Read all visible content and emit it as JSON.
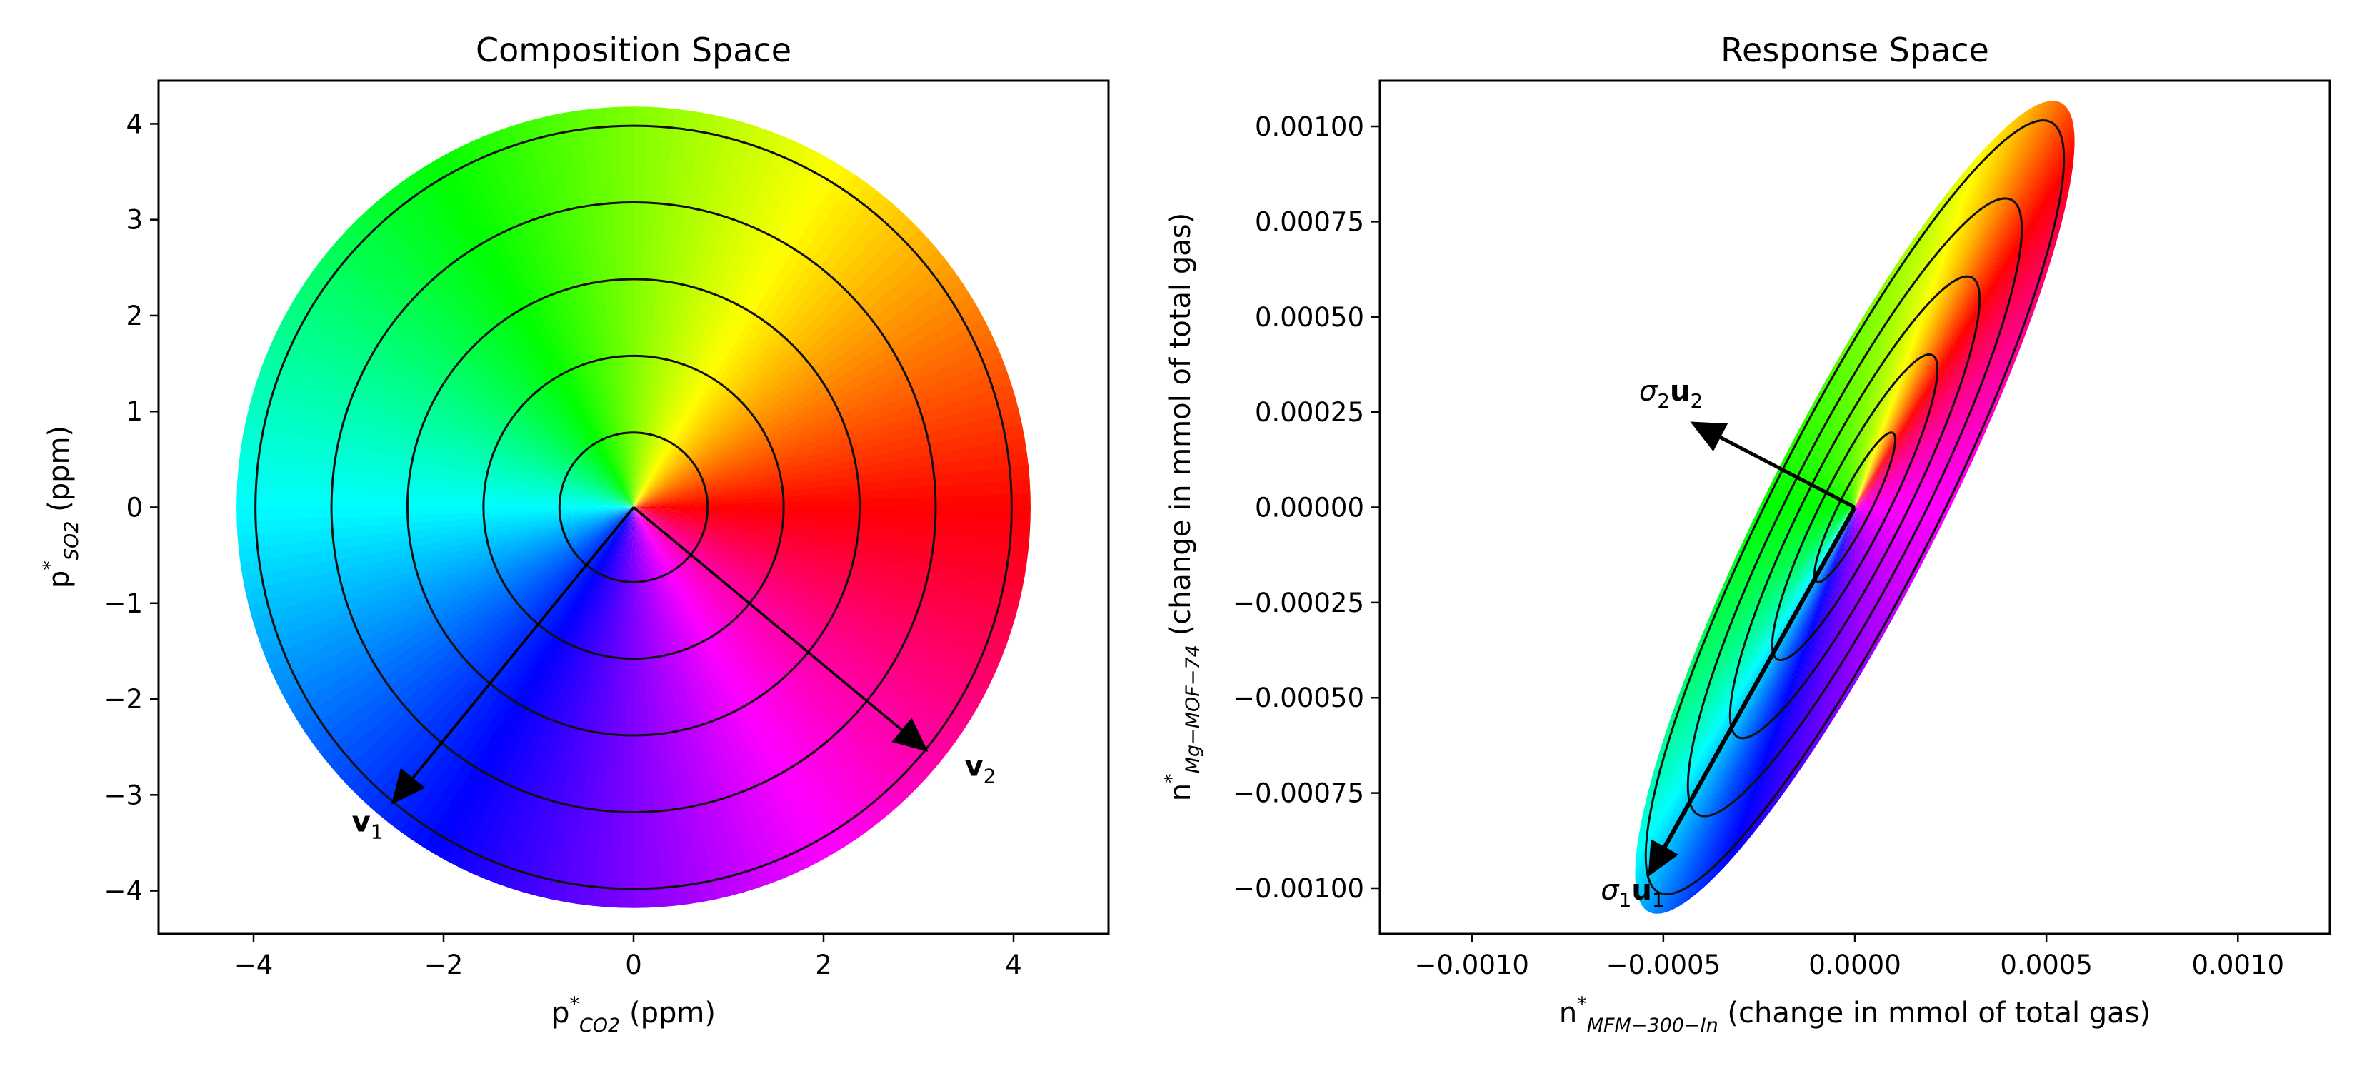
{
  "chart_data": [
    {
      "type": "polar color map with contours",
      "title": "Composition Space",
      "xlabel": "p*_CO2 (ppm)",
      "xlabel_parts": {
        "main": "p",
        "sup": "*",
        "sub": "CO2",
        "rest": " (ppm)"
      },
      "ylabel": "p*_SO2 (ppm)",
      "ylabel_parts": {
        "main": "p",
        "sup": "*",
        "sub": "SO2",
        "rest": " (ppm)"
      },
      "xlim": [
        -5,
        5
      ],
      "ylim": [
        -4.45,
        4.45
      ],
      "xticks": [
        -4,
        -2,
        0,
        2,
        4
      ],
      "xtick_labels": [
        "−4",
        "−2",
        "0",
        "2",
        "4"
      ],
      "yticks": [
        -4,
        -3,
        -2,
        -1,
        0,
        1,
        2,
        3,
        4
      ],
      "ytick_labels": [
        "−4",
        "−3",
        "−2",
        "−1",
        "0",
        "1",
        "2",
        "3",
        "4"
      ],
      "disk_radius": 4.18,
      "contour_radii": [
        0.78,
        1.58,
        2.38,
        3.18,
        3.98
      ],
      "vectors": [
        {
          "label_main": "v",
          "label_sub": "1",
          "start": [
            0,
            0
          ],
          "end": [
            -2.55,
            -3.1
          ],
          "label_at": [
            -2.8,
            -3.38
          ]
        },
        {
          "label_main": "v",
          "label_sub": "2",
          "start": [
            0,
            0
          ],
          "end": [
            3.1,
            -2.55
          ],
          "label_at": [
            3.65,
            -2.8
          ]
        }
      ],
      "colormap": "hue by angle"
    },
    {
      "type": "ellipse color map with contours",
      "title": "Response Space",
      "xlabel": "n*_MFM−300−In (change in mmol of total gas)",
      "xlabel_parts": {
        "main": "n",
        "sup": "*",
        "sub": "MFM−300−In",
        "rest": " (change in mmol of total gas)"
      },
      "ylabel": "n*_Mg−MOF−74 (change in mmol of total gas)",
      "ylabel_parts": {
        "main": "n",
        "sup": "*",
        "sub": "Mg−MOF−74",
        "rest": " (change in mmol of total gas)"
      },
      "xlim": [
        -0.00124,
        0.00124
      ],
      "ylim": [
        -0.00112,
        0.00112
      ],
      "xticks": [
        -0.001,
        -0.0005,
        0,
        0.0005,
        0.001
      ],
      "xtick_labels": [
        "−0.0010",
        "−0.0005",
        "0.0000",
        "0.0005",
        "0.0010"
      ],
      "yticks": [
        -0.001,
        -0.00075,
        -0.0005,
        -0.00025,
        0,
        0.00025,
        0.0005,
        0.00075,
        0.001
      ],
      "ytick_labels": [
        "−0.00100",
        "−0.00075",
        "−0.00050",
        "−0.00025",
        "0.00000",
        "0.00025",
        "0.00050",
        "0.00075",
        "0.00100"
      ],
      "major_axis": [
        0.00043,
        0.00085
      ],
      "minor_axis": [
        -0.00016,
        8e-05
      ],
      "outer_scale": 1.25,
      "contour_scales": [
        0.23,
        0.47,
        0.71,
        0.95,
        1.19
      ],
      "vectors": [
        {
          "label_main": "σ",
          "label_sub": "2",
          "label_main2": "u",
          "label_sub2": "2",
          "start": [
            0,
            0
          ],
          "end": [
            -0.00043,
            0.000225
          ],
          "label_at": [
            -0.00048,
            0.00028
          ]
        },
        {
          "label_main": "σ",
          "label_sub": "1",
          "label_main2": "u",
          "label_sub2": "1",
          "start": [
            0,
            0
          ],
          "end": [
            -0.00054,
            -0.00097
          ],
          "label_at": [
            -0.00058,
            -0.00103
          ]
        }
      ],
      "colormap": "hue by angle (rotated)"
    }
  ]
}
